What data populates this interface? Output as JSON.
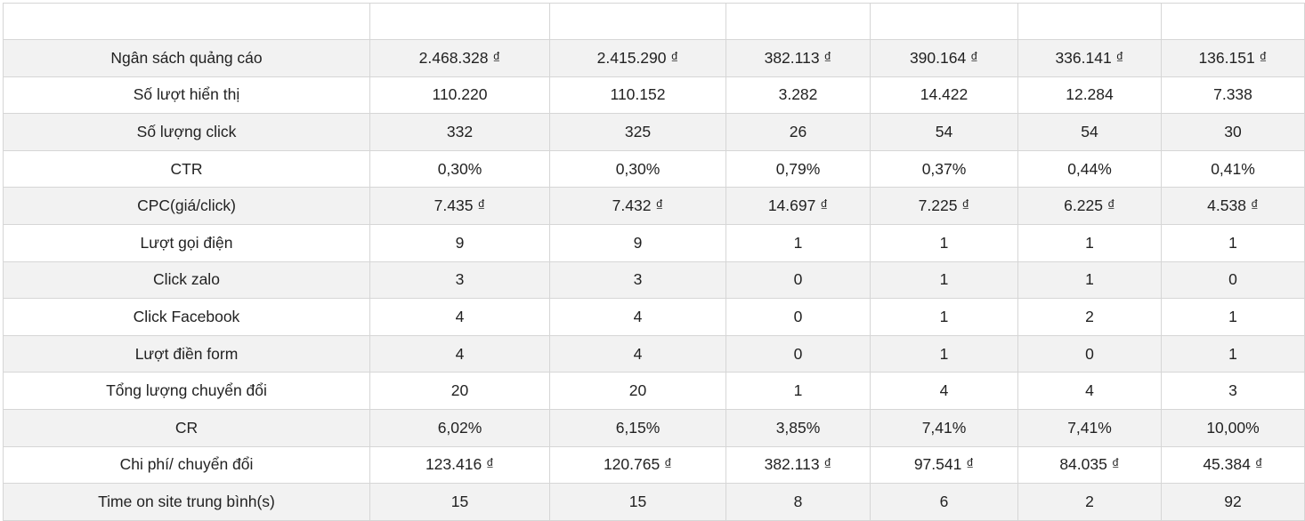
{
  "table": {
    "header": [
      "",
      "",
      "",
      "",
      "",
      "",
      ""
    ],
    "rows": [
      {
        "label": "Ngân sách quảng cáo",
        "cells": [
          "2.468.328 ₫",
          "2.415.290 ₫",
          "382.113 ₫",
          "390.164 ₫",
          "336.141 ₫",
          "136.151 ₫"
        ]
      },
      {
        "label": "Số lượt hiển thị",
        "cells": [
          "110.220",
          "110.152",
          "3.282",
          "14.422",
          "12.284",
          "7.338"
        ]
      },
      {
        "label": "Số lượng click",
        "cells": [
          "332",
          "325",
          "26",
          "54",
          "54",
          "30"
        ]
      },
      {
        "label": "CTR",
        "cells": [
          "0,30%",
          "0,30%",
          "0,79%",
          "0,37%",
          "0,44%",
          "0,41%"
        ]
      },
      {
        "label": "CPC(giá/click)",
        "cells": [
          "7.435 ₫",
          "7.432 ₫",
          "14.697 ₫",
          "7.225 ₫",
          "6.225 ₫",
          "4.538 ₫"
        ]
      },
      {
        "label": "Lượt gọi điện",
        "cells": [
          "9",
          "9",
          "1",
          "1",
          "1",
          "1"
        ]
      },
      {
        "label": "Click zalo",
        "cells": [
          "3",
          "3",
          "0",
          "1",
          "1",
          "0"
        ]
      },
      {
        "label": "Click Facebook",
        "cells": [
          "4",
          "4",
          "0",
          "1",
          "2",
          "1"
        ]
      },
      {
        "label": "Lượt điền form",
        "cells": [
          "4",
          "4",
          "0",
          "1",
          "0",
          "1"
        ]
      },
      {
        "label": "Tổng lượng chuyển đổi",
        "cells": [
          "20",
          "20",
          "1",
          "4",
          "4",
          "3"
        ]
      },
      {
        "label": "CR",
        "cells": [
          "6,02%",
          "6,15%",
          "3,85%",
          "7,41%",
          "7,41%",
          "10,00%"
        ]
      },
      {
        "label": "Chi phí/ chuyển đổi",
        "cells": [
          "123.416 ₫",
          "120.765 ₫",
          "382.113 ₫",
          "97.541 ₫",
          "84.035 ₫",
          "45.384 ₫"
        ]
      },
      {
        "label": "Time on site trung bình(s)",
        "cells": [
          "15",
          "15",
          "8",
          "6",
          "2",
          "92"
        ]
      }
    ]
  }
}
